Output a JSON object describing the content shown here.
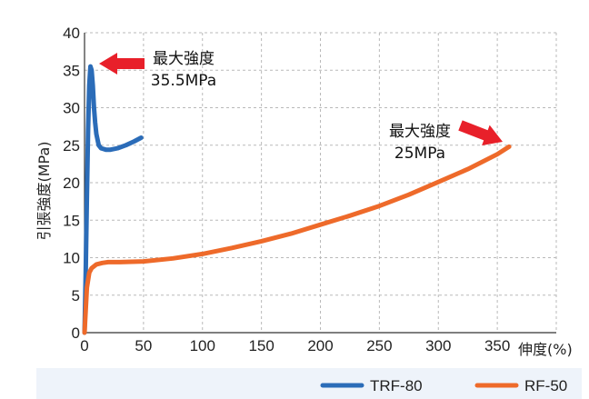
{
  "chart_data": {
    "type": "line",
    "title": "",
    "xlabel": "伸度(%)",
    "ylabel": "引張強度(MPa)",
    "xlim": [
      0,
      400
    ],
    "ylim": [
      0,
      40
    ],
    "x_ticks": [
      0,
      50,
      100,
      150,
      200,
      250,
      300,
      350
    ],
    "y_ticks": [
      0,
      5,
      10,
      15,
      20,
      25,
      30,
      35,
      40
    ],
    "grid": true,
    "legend_position": "bottom-right",
    "series": [
      {
        "name": "TRF-80",
        "color": "#2b6cb8",
        "x": [
          0,
          1,
          2,
          3,
          4,
          5,
          6,
          7,
          8,
          9,
          10,
          12,
          14,
          16,
          18,
          22,
          28,
          35,
          42,
          48
        ],
        "y": [
          0,
          8,
          18,
          27,
          33,
          35.5,
          35,
          33,
          30,
          28,
          26.5,
          25,
          24.6,
          24.5,
          24.4,
          24.4,
          24.6,
          25,
          25.5,
          26
        ]
      },
      {
        "name": "RF-50",
        "color": "#ee6a2a",
        "x": [
          0,
          2,
          4,
          6,
          10,
          15,
          20,
          30,
          50,
          75,
          100,
          125,
          150,
          175,
          200,
          225,
          250,
          275,
          300,
          325,
          350,
          360
        ],
        "y": [
          0,
          6,
          8,
          8.6,
          9.1,
          9.3,
          9.4,
          9.4,
          9.5,
          9.9,
          10.5,
          11.3,
          12.2,
          13.2,
          14.4,
          15.6,
          16.9,
          18.4,
          20.1,
          21.8,
          23.8,
          24.8
        ]
      }
    ],
    "annotations": [
      {
        "line1": "最大強度",
        "line2": "35.5MPa",
        "x": 5,
        "y": 35.5
      },
      {
        "line1": "最大強度",
        "line2": "25MPa",
        "x": 360,
        "y": 24.8
      }
    ]
  }
}
